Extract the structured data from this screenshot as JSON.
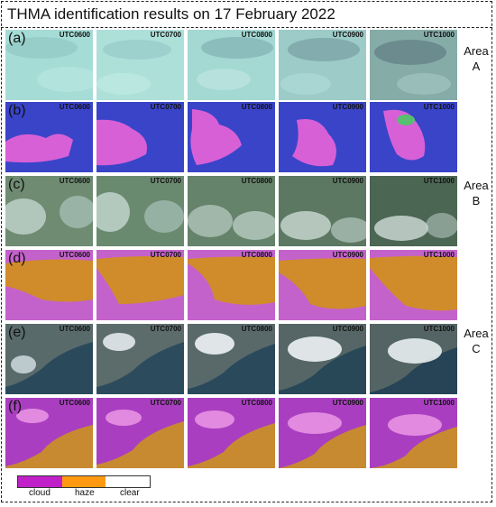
{
  "title": "THMA identification results on 17 February 2022",
  "utc_labels": [
    "UTC0600",
    "UTC0700",
    "UTC0800",
    "UTC0900",
    "UTC1000"
  ],
  "rows": [
    {
      "label": "(a)",
      "type": "rgb"
    },
    {
      "label": "(b)",
      "type": "class"
    },
    {
      "label": "(c)",
      "type": "rgb"
    },
    {
      "label": "(d)",
      "type": "class"
    },
    {
      "label": "(e)",
      "type": "rgb"
    },
    {
      "label": "(f)",
      "type": "class"
    }
  ],
  "areas": [
    {
      "line1": "Area",
      "line2": "A"
    },
    {
      "line1": "Area",
      "line2": "B"
    },
    {
      "line1": "Area",
      "line2": "C"
    }
  ],
  "legend": {
    "items": [
      {
        "label": "cloud",
        "color": "#c020c8"
      },
      {
        "label": "haze",
        "color": "#ff9a10"
      },
      {
        "label": "clear",
        "color": "#ffffff"
      }
    ]
  },
  "colors": {
    "area_a_rgb": "#a8dcd8",
    "area_a_class_bg": "#3b42c8",
    "area_a_class_fg": "#d860d8",
    "area_b_rgb": "#6d8a72",
    "area_b_class_bg": "#d08a2a",
    "area_b_class_fg": "#c060c8",
    "area_c_rgb": "#37526a",
    "area_c_class_bg": "#c88a30",
    "area_c_class_fg": "#b040c0"
  }
}
